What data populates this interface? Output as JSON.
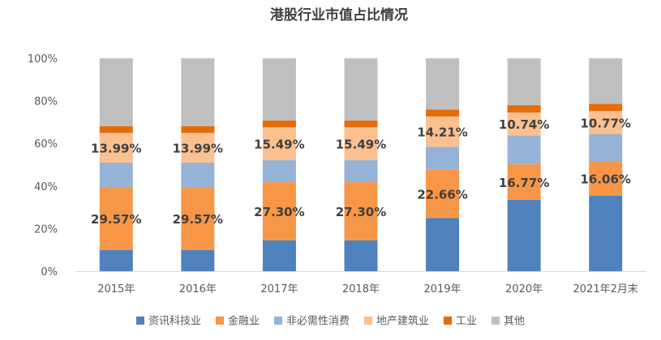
{
  "chart_data": {
    "type": "bar",
    "stacked": true,
    "title": "港股行业市值占比情况",
    "categories": [
      "2015年",
      "2016年",
      "2017年",
      "2018年",
      "2019年",
      "2020年",
      "2021年2月末"
    ],
    "ylim": [
      0,
      100
    ],
    "yticks": [
      "0%",
      "20%",
      "40%",
      "60%",
      "80%",
      "100%"
    ],
    "grid": false,
    "legend_position": "bottom",
    "series": [
      {
        "name": "资讯科技业",
        "color": "#4f81bd",
        "values": [
          10,
          10,
          14.5,
          14.5,
          25,
          33.5,
          35.5
        ]
      },
      {
        "name": "金融业",
        "color": "#f79646",
        "values": [
          29.57,
          29.57,
          27.3,
          27.3,
          22.66,
          16.77,
          16.06
        ],
        "labels": [
          "29.57%",
          "29.57%",
          "27.30%",
          "27.30%",
          "22.66%",
          "16.77%",
          "16.06%"
        ]
      },
      {
        "name": "非必需性消费",
        "color": "#95b3d7",
        "values": [
          11.4,
          11.4,
          10.3,
          10.3,
          10.8,
          13.5,
          12.9
        ]
      },
      {
        "name": "地产建筑业",
        "color": "#fac090",
        "values": [
          13.99,
          13.99,
          15.49,
          15.49,
          14.21,
          10.74,
          10.77
        ],
        "labels": [
          "13.99%",
          "13.99%",
          "15.49%",
          "15.49%",
          "14.21%",
          "10.74%",
          "10.77%"
        ]
      },
      {
        "name": "工业",
        "color": "#e46c0a",
        "values": [
          3.2,
          3.2,
          3.2,
          3.2,
          3.2,
          3.5,
          3.4
        ]
      },
      {
        "name": "其他",
        "color": "#bfbfbf",
        "values": [
          31.84,
          31.84,
          29.21,
          29.21,
          24.13,
          21.99,
          21.37
        ]
      }
    ]
  }
}
